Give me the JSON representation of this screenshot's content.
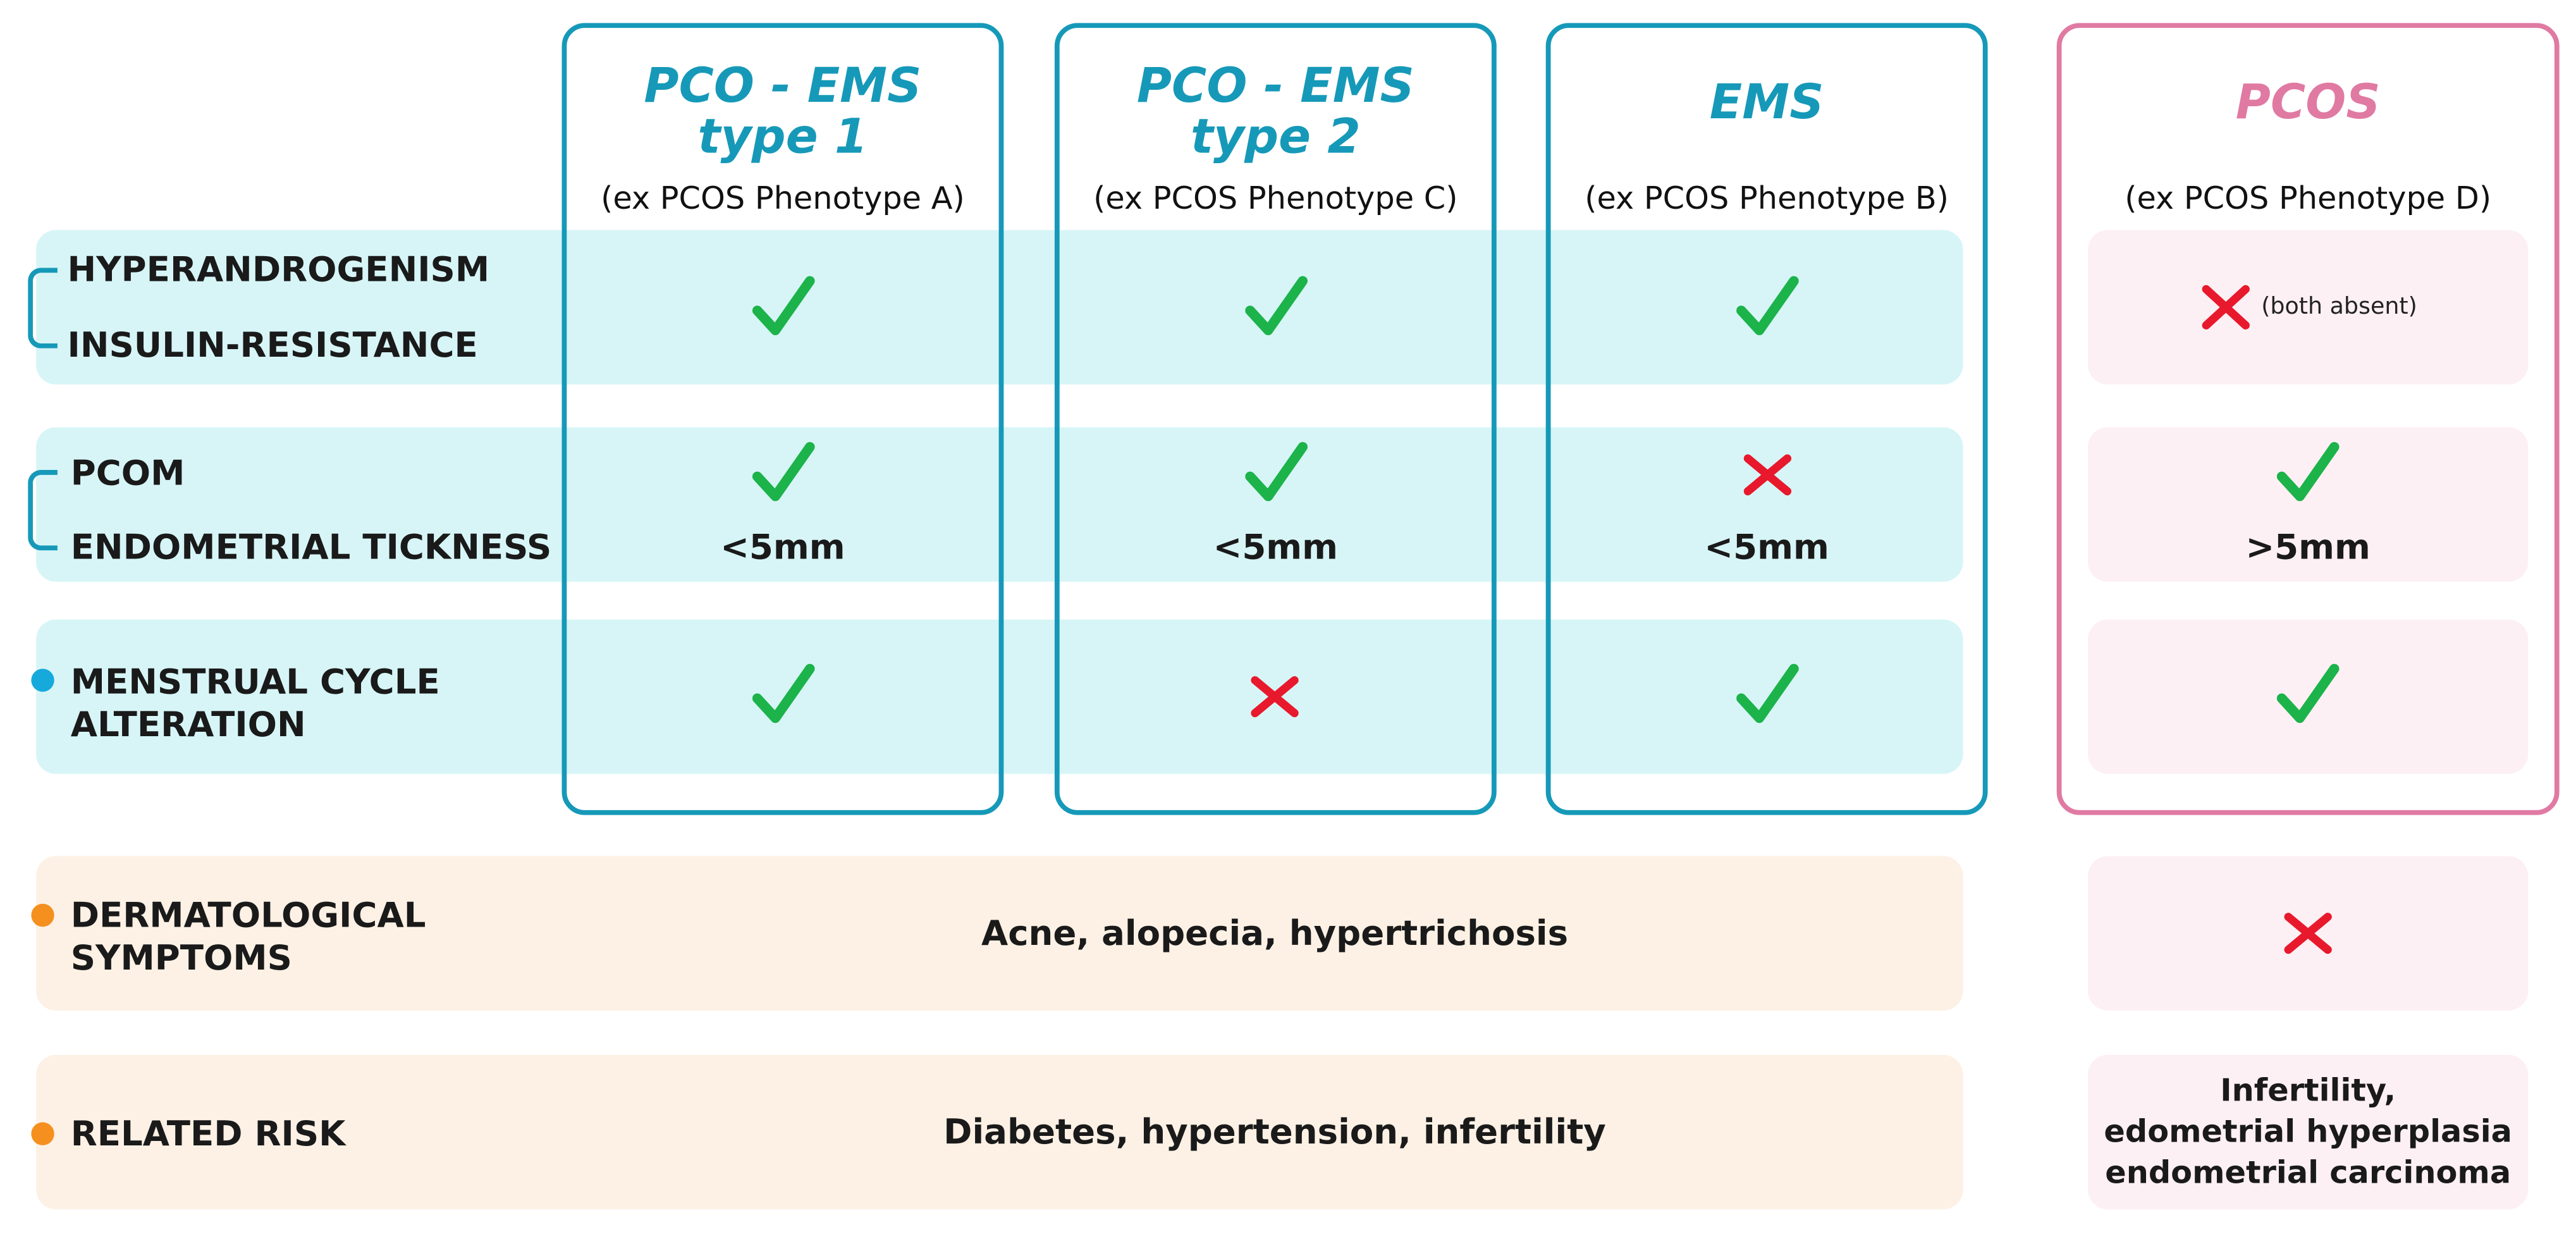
{
  "columns": [
    {
      "title_line1": "PCO - EMS",
      "title_line2": "type 1",
      "subtitle": "(ex PCOS Phenotype A)"
    },
    {
      "title_line1": "PCO - EMS",
      "title_line2": "type 2",
      "subtitle": "(ex PCOS Phenotype C)"
    },
    {
      "title_line1": "EMS",
      "title_line2": "",
      "subtitle": "(ex PCOS Phenotype B)"
    },
    {
      "title_line1": "PCOS",
      "title_line2": "",
      "subtitle": "(ex PCOS Phenotype D)"
    }
  ],
  "rows": {
    "hyperandrogenism": "HYPERANDROGENISM",
    "insulin_resistance": "INSULIN-RESISTANCE",
    "pcom": "PCOM",
    "endometrial": "ENDOMETRIAL TICKNESS",
    "menstrual_line1": "MENSTRUAL CYCLE",
    "menstrual_line2": "ALTERATION",
    "dermatological_line1": "DERMATOLOGICAL",
    "dermatological_line2": "SYMPTOMS",
    "related_risk": "RELATED RISK"
  },
  "values": {
    "endometrial_cols": [
      "<5mm",
      "<5mm",
      "<5mm",
      ">5mm"
    ],
    "both_absent_note": "(both absent)",
    "dermatological_shared": "Acne, alopecia, hypertrichosis",
    "risk_shared": "Diabetes, hypertension, infertility",
    "risk_pcos_line1": "Infertility,",
    "risk_pcos_line2": "edometrial hyperplasia",
    "risk_pcos_line3": "endometrial carcinoma"
  },
  "icons": {
    "check": "check-icon",
    "cross": "cross-icon"
  },
  "colors": {
    "accent_teal": "#1699b8",
    "accent_pink": "#e07aa3",
    "check_green": "#1cb34a",
    "cross_red": "#e8192c",
    "dot_blue": "#16a9dc",
    "dot_orange": "#f5901e",
    "band_cyan": "#d7f5f7",
    "band_peach": "#fdf1e5",
    "band_pink": "#fdf0f4"
  }
}
